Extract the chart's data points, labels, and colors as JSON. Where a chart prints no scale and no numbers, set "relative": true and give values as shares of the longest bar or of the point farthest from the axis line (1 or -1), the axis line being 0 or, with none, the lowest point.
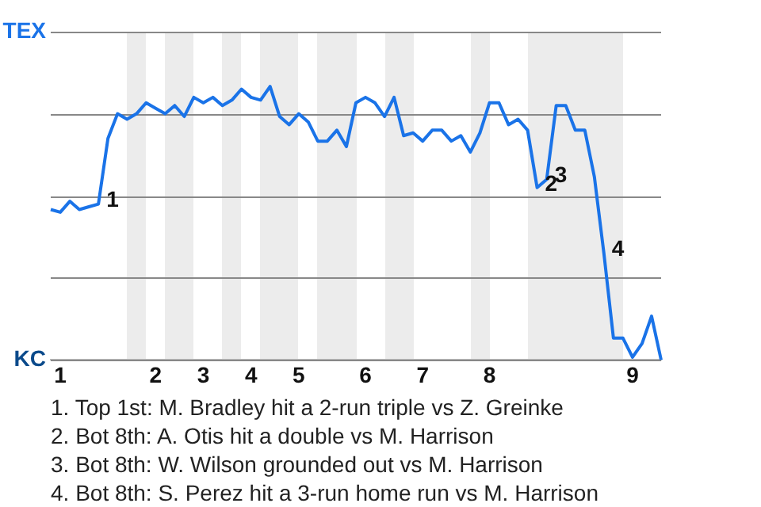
{
  "chart_data": {
    "type": "line",
    "relative": true,
    "categories": [
      null,
      "1",
      null,
      null,
      null,
      null,
      null,
      null,
      null,
      null,
      null,
      "2",
      null,
      null,
      null,
      null,
      "3",
      null,
      null,
      null,
      null,
      "4",
      null,
      null,
      null,
      null,
      "5",
      null,
      null,
      null,
      null,
      null,
      null,
      "6",
      null,
      null,
      null,
      null,
      null,
      "7",
      null,
      null,
      null,
      null,
      null,
      null,
      "8",
      null,
      null,
      null,
      null,
      null,
      null,
      null,
      null,
      null,
      null,
      null,
      null,
      null,
      null,
      "9",
      null,
      null,
      null
    ],
    "series": [
      {
        "color": "#1a73e8",
        "values": [
          0.55,
          0.54,
          0.58,
          0.55,
          0.56,
          0.57,
          0.81,
          0.9,
          0.88,
          0.9,
          0.94,
          0.92,
          0.9,
          0.93,
          0.89,
          0.96,
          0.94,
          0.96,
          0.93,
          0.95,
          0.99,
          0.96,
          0.95,
          1,
          0.89,
          0.86,
          0.9,
          0.87,
          0.8,
          0.8,
          0.84,
          0.78,
          0.94,
          0.96,
          0.94,
          0.89,
          0.96,
          0.82,
          0.83,
          0.8,
          0.84,
          0.84,
          0.8,
          0.82,
          0.76,
          0.83,
          0.94,
          0.94,
          0.86,
          0.88,
          0.84,
          0.63,
          0.66,
          0.93,
          0.93,
          0.84,
          0.84,
          0.67,
          0.39,
          0.08,
          0.08,
          0.01,
          0.06,
          0.16,
          0
        ]
      }
    ],
    "grid": "y",
    "legend": false,
    "marker": "none",
    "line_style": "solid",
    "annotations": [
      "TEX",
      "KC",
      "1",
      "2",
      "3",
      "4",
      "1. Top 1st: M. Bradley hit a 2-run triple vs Z. Greinke",
      "2. Bot 8th: A. Otis hit a double vs M. Harrison",
      "3. Bot 8th: W. Wilson grounded out vs M. Harrison",
      "4. Bot 8th: S. Perez hit a 3-run home run vs M. Harrison"
    ]
  }
}
